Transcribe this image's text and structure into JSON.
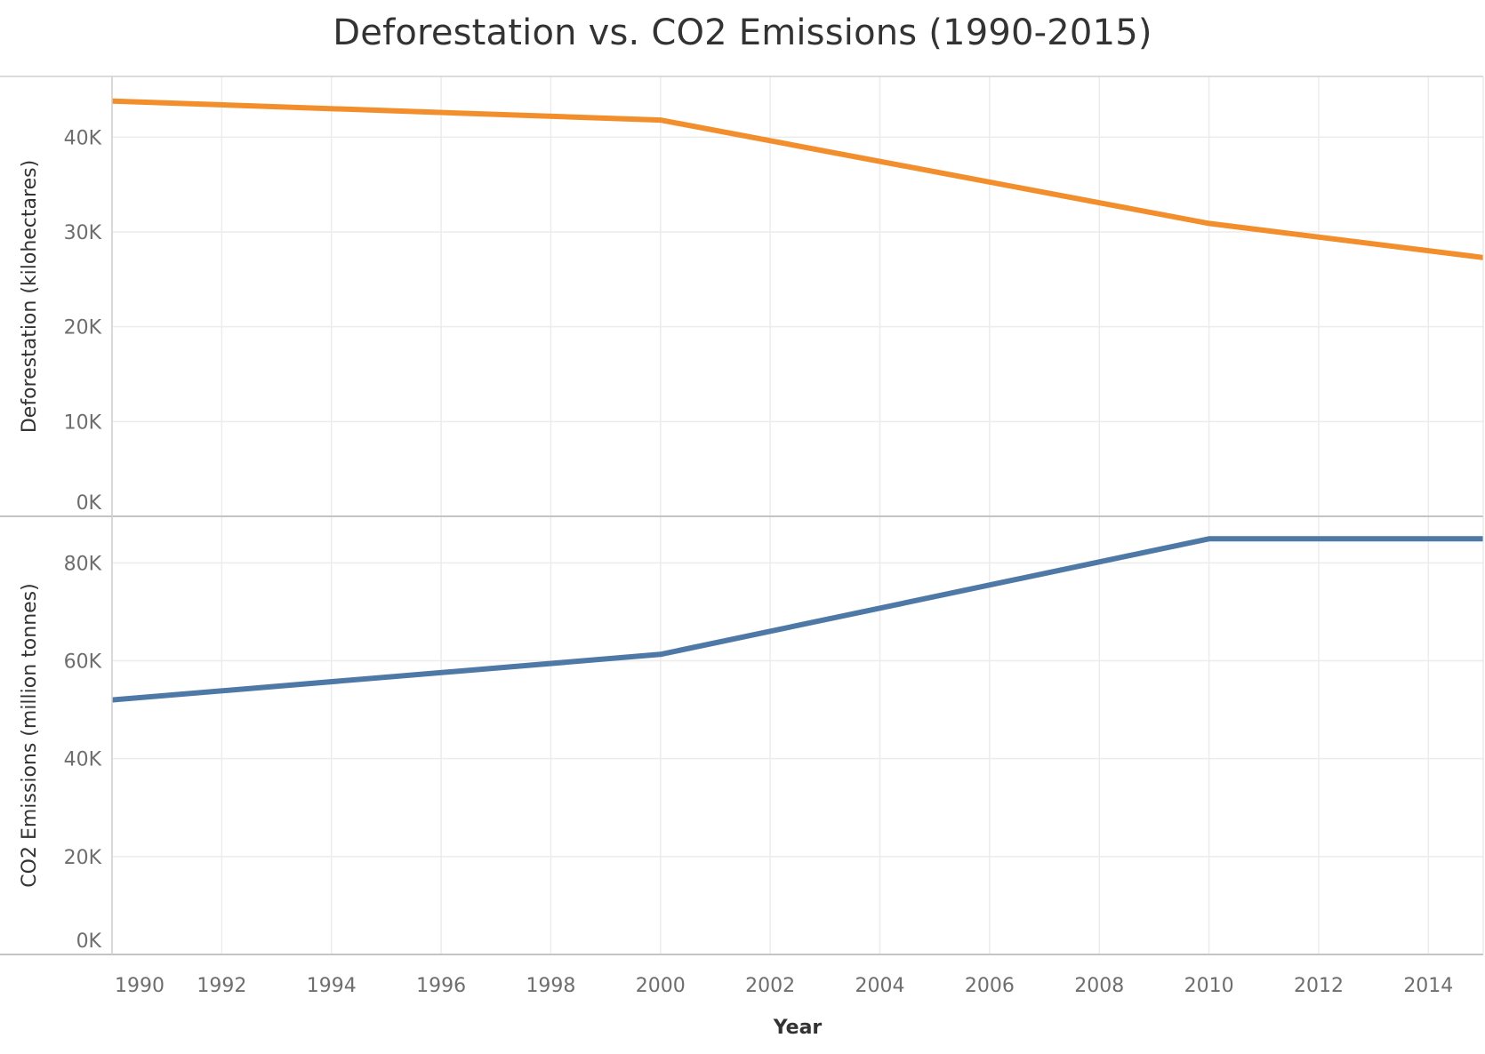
{
  "chart_data": {
    "type": "line",
    "title": "Deforestation vs. CO2 Emissions (1990-2015)",
    "xlabel": "Year",
    "x_ticks": [
      "1990",
      "1992",
      "1994",
      "1996",
      "1998",
      "2000",
      "2002",
      "2004",
      "2006",
      "2008",
      "2010",
      "2012",
      "2014"
    ],
    "xlim": [
      1990,
      2015
    ],
    "grid": true,
    "legend": "none",
    "panels": [
      {
        "ylabel": "Deforestation (kilohectares)",
        "ylim": [
          0,
          46400
        ],
        "y_ticks": [
          {
            "value": 0,
            "label": "0K"
          },
          {
            "value": 10000,
            "label": "10K"
          },
          {
            "value": 20000,
            "label": "20K"
          },
          {
            "value": 30000,
            "label": "30K"
          },
          {
            "value": 40000,
            "label": "40K"
          }
        ],
        "color": "#f28e2b",
        "series": [
          {
            "x": [
              1990,
              2000,
              2010,
              2015
            ],
            "values": [
              43800,
              41800,
              30900,
              27300
            ]
          }
        ]
      },
      {
        "ylabel": "CO2 Emissions (million tonnes)",
        "ylim": [
          0,
          89500
        ],
        "y_ticks": [
          {
            "value": 0,
            "label": "0K"
          },
          {
            "value": 20000,
            "label": "20K"
          },
          {
            "value": 40000,
            "label": "40K"
          },
          {
            "value": 60000,
            "label": "60K"
          },
          {
            "value": 80000,
            "label": "80K"
          }
        ],
        "color": "#4e79a7",
        "series": [
          {
            "x": [
              1990,
              2000,
              2010,
              2015
            ],
            "values": [
              52000,
              61300,
              84900,
              84900
            ]
          }
        ]
      }
    ]
  }
}
